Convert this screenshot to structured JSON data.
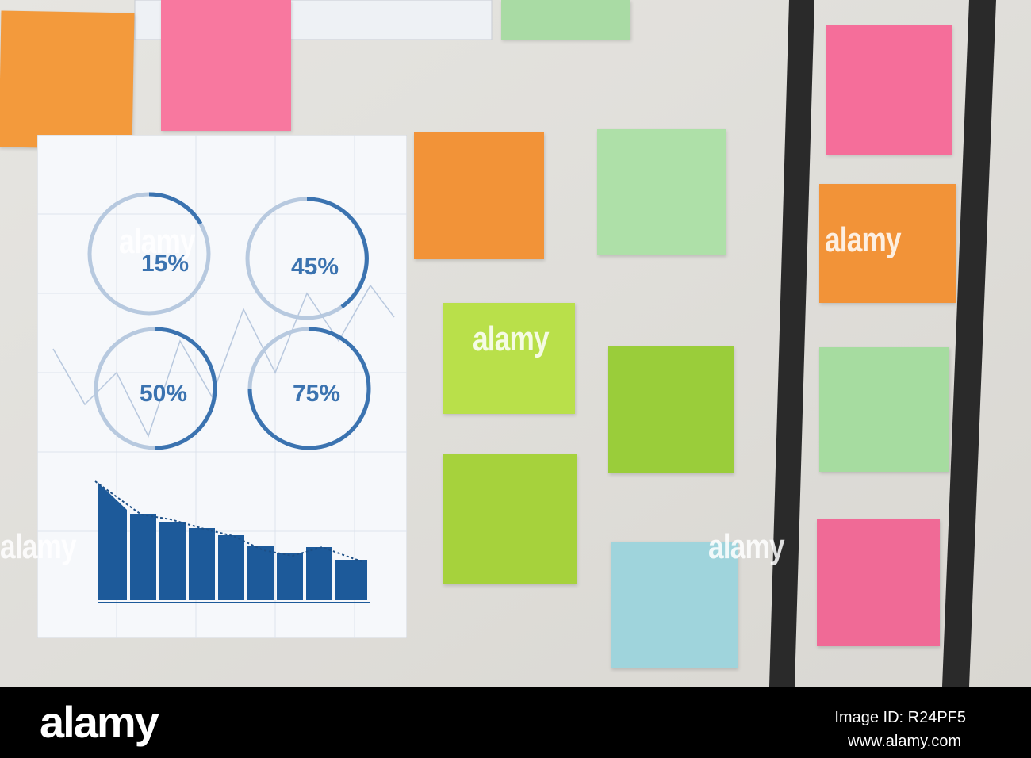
{
  "poster": {
    "gauges": [
      "15%",
      "45%",
      "50%",
      "75%"
    ]
  },
  "watermarks": [
    "alamy",
    "alamy",
    "alamy",
    "alamy",
    "alamy"
  ],
  "footer": {
    "logo": "alamy",
    "image_id": "Image ID: R24PF5",
    "url": "www.alamy.com"
  }
}
